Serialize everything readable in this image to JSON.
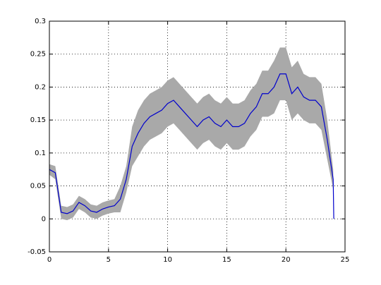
{
  "chart_data": {
    "type": "line",
    "x": [
      0,
      0.5,
      1,
      1.5,
      2,
      2.5,
      3,
      3.5,
      4,
      4.5,
      5,
      5.5,
      6,
      6.5,
      7,
      7.5,
      8,
      8.5,
      9,
      9.5,
      10,
      10.5,
      11,
      11.5,
      12,
      12.5,
      13,
      13.5,
      14,
      14.5,
      15,
      15.5,
      16,
      16.5,
      17,
      17.5,
      18,
      18.5,
      19,
      19.5,
      20,
      20.5,
      21,
      21.5,
      22,
      22.5,
      23,
      23.5,
      24,
      24.05
    ],
    "series": [
      {
        "color": "#0000cc",
        "band_color": "#a9a9a9",
        "values": [
          0.075,
          0.07,
          0.01,
          0.008,
          0.012,
          0.025,
          0.02,
          0.012,
          0.01,
          0.015,
          0.018,
          0.02,
          0.03,
          0.06,
          0.11,
          0.13,
          0.145,
          0.155,
          0.16,
          0.165,
          0.175,
          0.18,
          0.17,
          0.16,
          0.15,
          0.14,
          0.15,
          0.155,
          0.145,
          0.14,
          0.15,
          0.14,
          0.14,
          0.145,
          0.16,
          0.17,
          0.19,
          0.19,
          0.2,
          0.22,
          0.22,
          0.19,
          0.2,
          0.185,
          0.18,
          0.18,
          0.17,
          0.12,
          0.06,
          0
        ],
        "lower": [
          0.067,
          0.06,
          0,
          -0.002,
          0.002,
          0.015,
          0.01,
          0.002,
          0,
          0.005,
          0.008,
          0.01,
          0.01,
          0.04,
          0.08,
          0.095,
          0.11,
          0.12,
          0.125,
          0.13,
          0.14,
          0.145,
          0.135,
          0.125,
          0.115,
          0.105,
          0.115,
          0.12,
          0.11,
          0.105,
          0.115,
          0.105,
          0.105,
          0.11,
          0.125,
          0.135,
          0.155,
          0.155,
          0.16,
          0.18,
          0.18,
          0.15,
          0.16,
          0.15,
          0.145,
          0.145,
          0.135,
          0.09,
          0.045,
          0
        ],
        "upper": [
          0.083,
          0.08,
          0.02,
          0.018,
          0.022,
          0.035,
          0.03,
          0.022,
          0.02,
          0.025,
          0.028,
          0.03,
          0.05,
          0.08,
          0.14,
          0.165,
          0.18,
          0.19,
          0.195,
          0.2,
          0.21,
          0.215,
          0.205,
          0.195,
          0.185,
          0.175,
          0.185,
          0.19,
          0.18,
          0.175,
          0.185,
          0.175,
          0.175,
          0.18,
          0.195,
          0.205,
          0.225,
          0.225,
          0.24,
          0.26,
          0.26,
          0.23,
          0.24,
          0.22,
          0.215,
          0.215,
          0.205,
          0.15,
          0.075,
          0
        ]
      }
    ],
    "xlim": [
      0,
      25
    ],
    "xticks": [
      0,
      5,
      10,
      15,
      20,
      25
    ],
    "ylim": [
      -0.05,
      0.3
    ],
    "yticks": [
      -0.05,
      0,
      0.05,
      0.1,
      0.15,
      0.2,
      0.25,
      0.3
    ],
    "grid": true
  }
}
